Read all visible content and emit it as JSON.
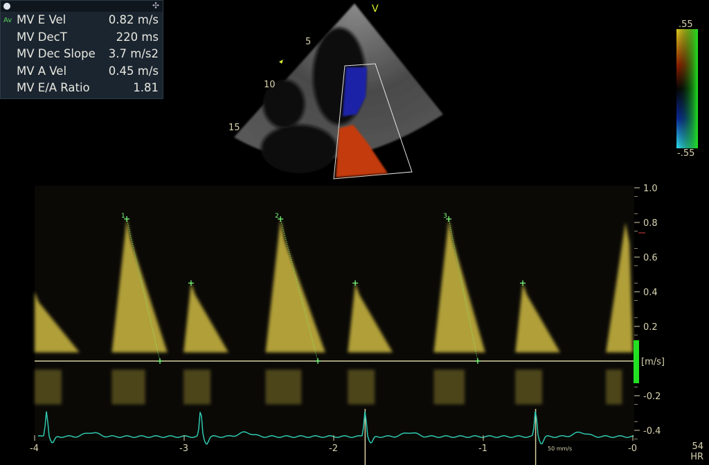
{
  "measurements": {
    "badge": "Av",
    "rows": [
      {
        "label": "MV E Vel",
        "value": "0.82 m/s"
      },
      {
        "label": "MV DecT",
        "value": "220 ms"
      },
      {
        "label": "MV Dec Slope",
        "value": "3.7 m/s2"
      },
      {
        "label": "MV A Vel",
        "value": "0.45 m/s"
      },
      {
        "label": "MV E/A Ratio",
        "value": "1.81"
      }
    ]
  },
  "sector": {
    "orientation_mark": "V",
    "depth_labels": [
      "5",
      "10",
      "15"
    ]
  },
  "color_scale": {
    "top": ".55",
    "bottom": "-.55"
  },
  "doppler": {
    "velocity_unit": "[m/s]",
    "velocity_ticks": [
      "1.0",
      "0.8",
      "0.6",
      "0.4",
      "0.2",
      "-0.2",
      "-0.4"
    ],
    "time_ticks": [
      "-4",
      "-3",
      "-2",
      "-1",
      "-0"
    ],
    "sweep_speed": "50 mm/s",
    "colors": {
      "spectrum": "#e8d24a",
      "markers": "#7dff7d",
      "ecg": "#2ec9b0"
    },
    "cycles": [
      {
        "label": "1",
        "e_time": -3.384,
        "e_vel": 0.82,
        "dect_end": -3.162,
        "a_time": -2.954,
        "a_vel": 0.45
      },
      {
        "label": "2",
        "e_time": -2.356,
        "e_vel": 0.82,
        "dect_end": -2.106,
        "a_time": -1.856,
        "a_vel": 0.45
      },
      {
        "label": "3",
        "e_time": -1.231,
        "e_vel": 0.82,
        "dect_end": -1.037,
        "a_time": -0.736,
        "a_vel": 0.45
      }
    ]
  },
  "heart_rate": {
    "value": "54",
    "label": "HR"
  }
}
